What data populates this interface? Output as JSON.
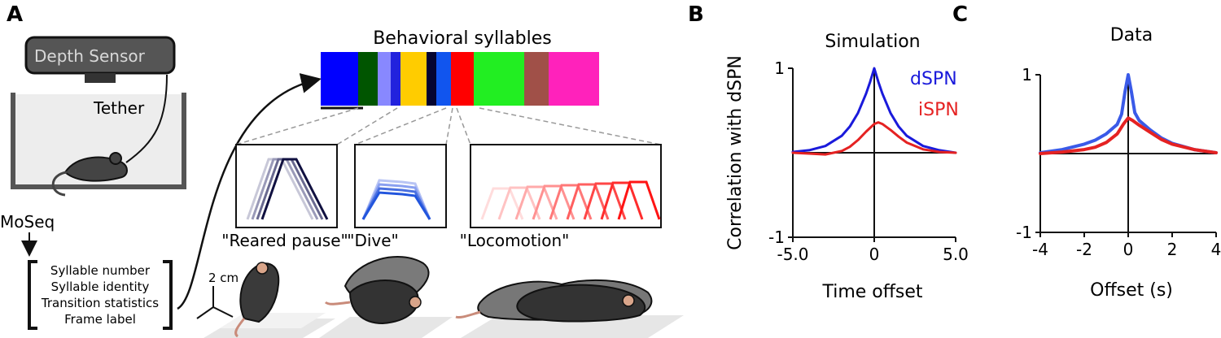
{
  "panels": {
    "a": {
      "letter": "A"
    },
    "b": {
      "letter": "B"
    },
    "c": {
      "letter": "C"
    }
  },
  "rig": {
    "sensor_label": "Depth Sensor",
    "tether_label": "Tether",
    "moseq_label": "MoSeq",
    "outputs": [
      "Syllable number",
      "Syllable identity",
      "Transition statistics",
      "Frame label"
    ]
  },
  "syllables": {
    "title": "Behavioral syllables",
    "blocks": [
      {
        "w": 46,
        "color": "#0000ff"
      },
      {
        "w": 24,
        "color": "#005500"
      },
      {
        "w": 16,
        "color": "#8888ff"
      },
      {
        "w": 12,
        "color": "#2222dd"
      },
      {
        "w": 32,
        "color": "#ffcc00"
      },
      {
        "w": 12,
        "color": "#050530"
      },
      {
        "w": 18,
        "color": "#1155ee"
      },
      {
        "w": 28,
        "color": "#ff0000"
      },
      {
        "w": 62,
        "color": "#22ee22"
      },
      {
        "w": 30,
        "color": "#a05048"
      },
      {
        "w": 62,
        "color": "#ff22bb"
      }
    ],
    "examples": [
      {
        "label": "\"Reared pause\"",
        "color": "#101040"
      },
      {
        "label": "\"Dive\"",
        "color": "#2255dd"
      },
      {
        "label": "\"Locomotion\"",
        "color": "#dd1111"
      }
    ],
    "scalebar_label": "2 cm"
  },
  "sim_chart": {
    "type": "line",
    "title": "Simulation",
    "xlabel": "Time offset",
    "ylabel": "Correlation with dSPN",
    "xlim": [
      -5.0,
      5.0
    ],
    "ylim": [
      -1,
      1
    ],
    "xticks": [
      "-5.0",
      "0",
      "5.0"
    ],
    "yticks": [
      "1",
      "-1"
    ],
    "series": [
      {
        "name": "dSPN",
        "color": "#1a1adb",
        "x": [
          -5,
          -4,
          -3,
          -2,
          -1.5,
          -1,
          -0.5,
          -0.25,
          0,
          0.25,
          0.5,
          1,
          1.5,
          2,
          3,
          4,
          5
        ],
        "values": [
          0.01,
          0.03,
          0.08,
          0.2,
          0.31,
          0.47,
          0.7,
          0.84,
          1.0,
          0.84,
          0.7,
          0.47,
          0.31,
          0.2,
          0.08,
          0.03,
          0.0
        ]
      },
      {
        "name": "iSPN",
        "color": "#e52222",
        "x": [
          -5,
          -4,
          -3,
          -2,
          -1.5,
          -1,
          -0.5,
          0,
          0.25,
          0.5,
          1,
          1.5,
          2,
          3,
          4,
          5
        ],
        "values": [
          0.0,
          -0.01,
          -0.02,
          0.02,
          0.07,
          0.15,
          0.25,
          0.34,
          0.36,
          0.34,
          0.27,
          0.19,
          0.12,
          0.04,
          0.01,
          0.0
        ]
      }
    ]
  },
  "data_chart": {
    "type": "line",
    "title": "Data",
    "xlabel": "Offset (s)",
    "ylabel": "",
    "xlim": [
      -4,
      4
    ],
    "ylim": [
      -1,
      1
    ],
    "xticks": [
      "-4",
      "-2",
      "0",
      "2",
      "4"
    ],
    "yticks": [
      "1",
      "-1"
    ],
    "series": [
      {
        "name": "",
        "color": "#3a5ae8",
        "x": [
          -4,
          -3,
          -2,
          -1.5,
          -1,
          -0.5,
          -0.3,
          -0.15,
          0,
          0.15,
          0.3,
          0.5,
          1,
          1.5,
          2,
          3,
          4
        ],
        "values": [
          0.01,
          0.05,
          0.12,
          0.17,
          0.25,
          0.37,
          0.5,
          0.78,
          1.0,
          0.78,
          0.52,
          0.42,
          0.3,
          0.2,
          0.13,
          0.05,
          0.01
        ]
      },
      {
        "name": "",
        "color": "#e52222",
        "x": [
          -4,
          -3,
          -2,
          -1.5,
          -1,
          -0.5,
          -0.2,
          0,
          0.2,
          0.5,
          1,
          1.5,
          2,
          3,
          4
        ],
        "values": [
          0.0,
          0.02,
          0.05,
          0.08,
          0.14,
          0.25,
          0.38,
          0.45,
          0.42,
          0.36,
          0.27,
          0.18,
          0.12,
          0.05,
          0.01
        ]
      }
    ]
  }
}
